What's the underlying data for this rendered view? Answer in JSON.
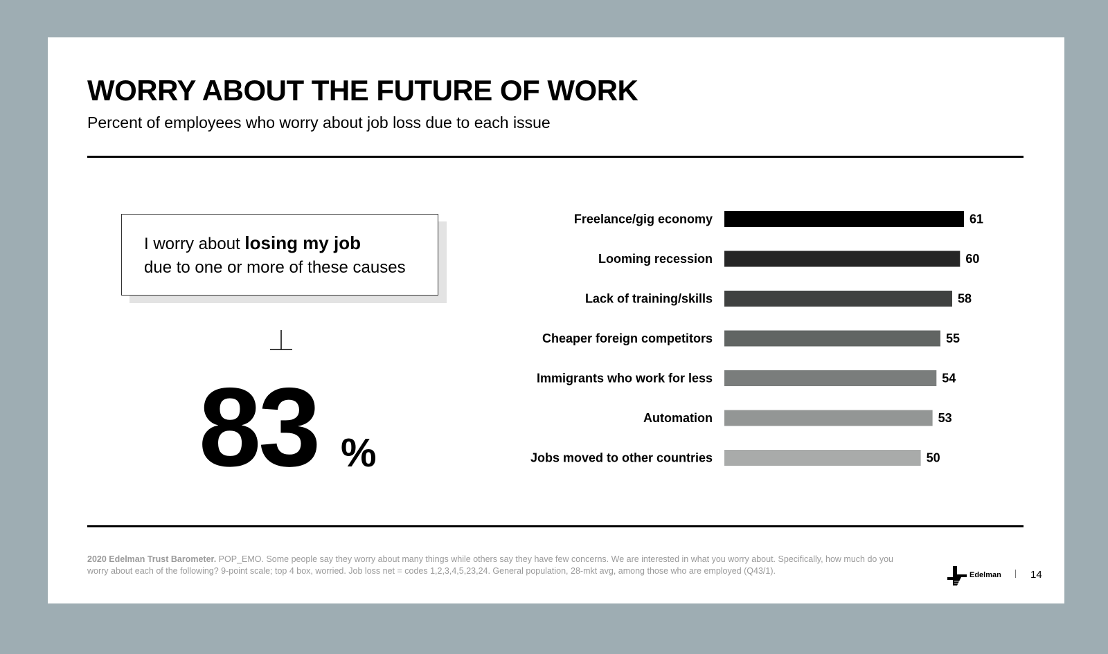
{
  "header": {
    "title": "WORRY ABOUT THE FUTURE OF WORK",
    "subtitle": "Percent of employees who worry about job loss due to each issue"
  },
  "callout": {
    "text_before": "I worry about ",
    "text_bold": "losing my job",
    "text_after": "due to one or more of these causes"
  },
  "headline_stat": {
    "value": "83",
    "unit": "%"
  },
  "chart_data": {
    "type": "bar",
    "orientation": "horizontal",
    "categories": [
      "Freelance/gig economy",
      "Looming recession",
      "Lack of training/skills",
      "Cheaper foreign competitors",
      "Immigrants who work for less",
      "Automation",
      "Jobs moved to other countries"
    ],
    "values": [
      61,
      60,
      58,
      55,
      54,
      53,
      50
    ],
    "colors": [
      "#000000",
      "#262626",
      "#3f4140",
      "#616563",
      "#7a7d7c",
      "#939695",
      "#a9abaa"
    ],
    "grid": false,
    "data_labels": true
  },
  "footer": {
    "source_bold": "2020 Edelman Trust Barometer.",
    "note": " POP_EMO. Some people say they worry about many things while others say they have few concerns. We are interested in what you worry about. Specifically, how much do you worry about each of the following? 9-point scale; top 4 box, worried. Job loss net = codes 1,2,3,4,5,23,24. General population, 28-mkt avg, among those who are employed (Q43/1).",
    "logo_text": "Edelman",
    "page_number": "14"
  }
}
